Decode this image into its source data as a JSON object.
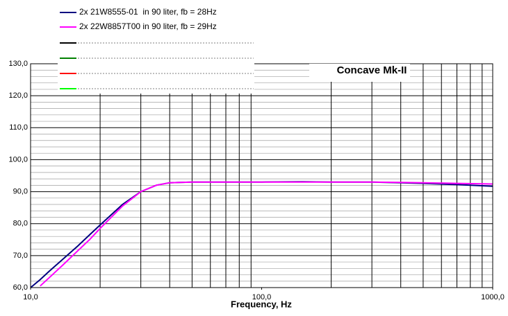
{
  "chart_data": {
    "type": "line",
    "title": "Concave Mk-II",
    "x_label": "Frequency, Hz",
    "x": [
      10,
      11,
      12,
      14,
      16,
      18,
      20,
      25,
      30,
      35,
      40,
      50,
      70,
      100,
      150,
      200,
      300,
      400,
      500,
      700,
      1000
    ],
    "series": [
      {
        "name": "2x 21W8555-01  in 90 liter, fb = 28Hz",
        "color": "#000080",
        "values": [
          60,
          62.5,
          65,
          69.3,
          73,
          76.5,
          79.6,
          86,
          90,
          92,
          92.8,
          93,
          93,
          93,
          93.1,
          93,
          93,
          92.8,
          92.6,
          92.2,
          91.7
        ]
      },
      {
        "name": "2x 22W8857T00 in 90 liter, fb = 29Hz",
        "color": "#ff00ff",
        "values": [
          null,
          60.5,
          63,
          67.5,
          71.5,
          75,
          78.5,
          85.5,
          90,
          92,
          92.8,
          93,
          93,
          93,
          93,
          93,
          93,
          92.9,
          92.8,
          92.6,
          92.4
        ]
      }
    ],
    "x_log": true,
    "xlim": [
      10,
      1000
    ],
    "xticks": [
      {
        "value": 10,
        "label": "10,0"
      },
      {
        "value": 100,
        "label": "100,0"
      },
      {
        "value": 1000,
        "label": "1000,0"
      }
    ],
    "xticks_minor": [
      20,
      30,
      40,
      50,
      60,
      70,
      80,
      90,
      200,
      300,
      400,
      500,
      600,
      700,
      800,
      900
    ],
    "ylim": [
      60,
      130
    ],
    "yticks": [
      {
        "value": 60,
        "label": "60,0"
      },
      {
        "value": 70,
        "label": "70,0"
      },
      {
        "value": 80,
        "label": "80,0"
      },
      {
        "value": 90,
        "label": "90,0"
      },
      {
        "value": 100,
        "label": "100,0"
      },
      {
        "value": 110,
        "label": "110,0"
      },
      {
        "value": 120,
        "label": "120,0"
      },
      {
        "value": 130,
        "label": "130,0"
      }
    ],
    "yticks_minor": [
      62,
      64,
      66,
      68,
      72,
      74,
      76,
      78,
      82,
      84,
      86,
      88,
      92,
      94,
      96,
      98,
      102,
      104,
      106,
      108,
      112,
      114,
      116,
      118,
      122,
      124,
      126,
      128
    ],
    "grid": true
  }
}
